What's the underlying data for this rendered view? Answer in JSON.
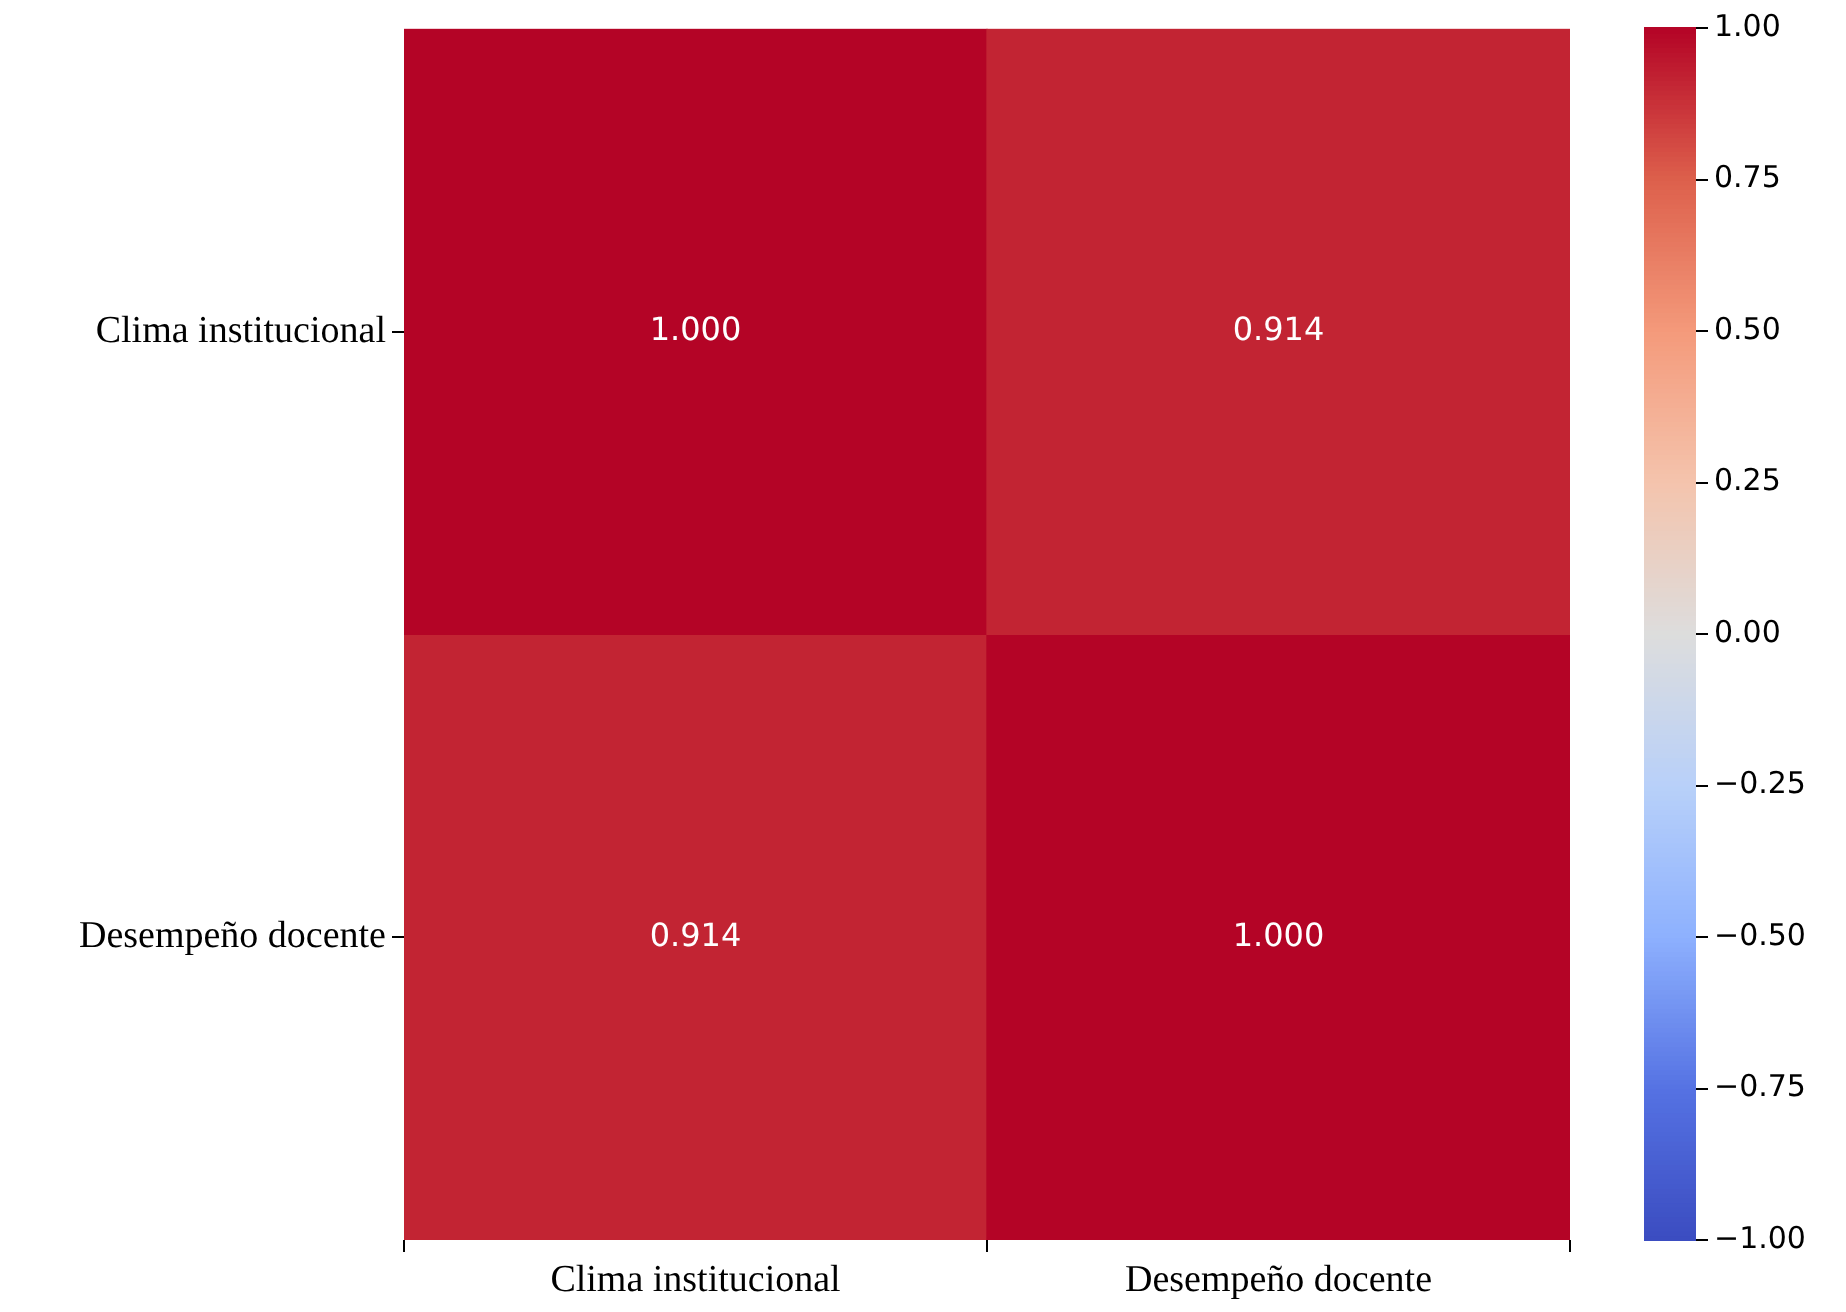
{
  "chart_data": {
    "type": "heatmap",
    "categories": [
      "Clima institucional",
      "Desempeño docente"
    ],
    "y_categories": [
      "Clima institucional",
      "Desempeño docente"
    ],
    "cells": [
      [
        1,
        0.914
      ],
      [
        0.914,
        1
      ]
    ],
    "cell_labels": [
      [
        "1.000",
        "0.914"
      ],
      [
        "0.914",
        "1.000"
      ]
    ],
    "clim": [
      -1,
      1
    ],
    "cticks": [
      {
        "value": -1,
        "label": "−1.00"
      },
      {
        "value": -0.75,
        "label": "−0.75"
      },
      {
        "value": -0.5,
        "label": "−0.50"
      },
      {
        "value": -0.25,
        "label": "−0.25"
      },
      {
        "value": 0,
        "label": "0.00"
      },
      {
        "value": 0.25,
        "label": "0.25"
      },
      {
        "value": 0.5,
        "label": "0.50"
      },
      {
        "value": 0.75,
        "label": "0.75"
      },
      {
        "value": 1,
        "label": "1.00"
      }
    ]
  }
}
